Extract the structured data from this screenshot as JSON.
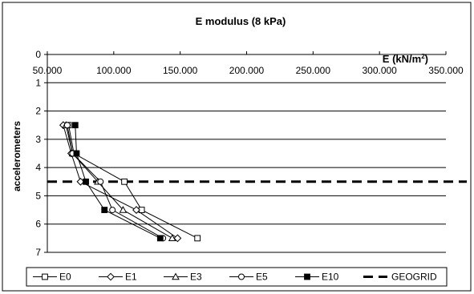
{
  "chart_data": {
    "type": "line",
    "title": "E modulus (8 kPa)",
    "xlabel": "E (kN/m",
    "xlabel_sup": "2",
    "xlabel_close": ")",
    "ylabel": "accelerometers",
    "xlim": [
      50,
      350
    ],
    "ylim": [
      0,
      7
    ],
    "y_reversed": true,
    "x_axis_position": "top",
    "x_ticks": [
      50,
      100,
      150,
      200,
      250,
      300,
      350
    ],
    "x_tick_labels": [
      "50.000",
      "100.000",
      "150.000",
      "200.000",
      "250.000",
      "300.000",
      "350.000"
    ],
    "y_ticks": [
      0,
      1,
      2,
      3,
      4,
      5,
      6,
      7
    ],
    "y_tick_labels": [
      "0",
      "1",
      "2",
      "3",
      "4",
      "5",
      "6",
      "7"
    ],
    "grid": "horizontal",
    "legend_position": "bottom",
    "series": [
      {
        "name": "E0",
        "marker": "square-open",
        "color": "#000000",
        "points": [
          [
            66,
            2.5
          ],
          [
            70,
            3.5
          ],
          [
            108,
            4.5
          ],
          [
            121,
            5.5
          ],
          [
            163,
            6.5
          ]
        ]
      },
      {
        "name": "E1",
        "marker": "diamond-open",
        "color": "#000000",
        "points": [
          [
            62,
            2.5
          ],
          [
            68,
            3.5
          ],
          [
            75,
            4.5
          ],
          [
            117,
            5.5
          ],
          [
            148,
            6.5
          ]
        ]
      },
      {
        "name": "E3",
        "marker": "triangle-open",
        "color": "#000000",
        "points": [
          [
            64,
            2.5
          ],
          [
            69,
            3.5
          ],
          [
            88,
            4.5
          ],
          [
            107,
            5.5
          ],
          [
            144,
            6.5
          ]
        ]
      },
      {
        "name": "E5",
        "marker": "circle-open",
        "color": "#000000",
        "points": [
          [
            65,
            2.5
          ],
          [
            69,
            3.5
          ],
          [
            90,
            4.5
          ],
          [
            99,
            5.5
          ],
          [
            137,
            6.5
          ]
        ]
      },
      {
        "name": "E10",
        "marker": "square-filled",
        "color": "#000000",
        "points": [
          [
            71,
            2.5
          ],
          [
            72,
            3.5
          ],
          [
            79,
            4.5
          ],
          [
            93,
            5.5
          ],
          [
            135,
            6.5
          ]
        ]
      }
    ],
    "reference_lines": [
      {
        "name": "GEOGRID",
        "axis": "y",
        "value": 4.5,
        "style": "dashed",
        "color": "#000000"
      }
    ]
  }
}
